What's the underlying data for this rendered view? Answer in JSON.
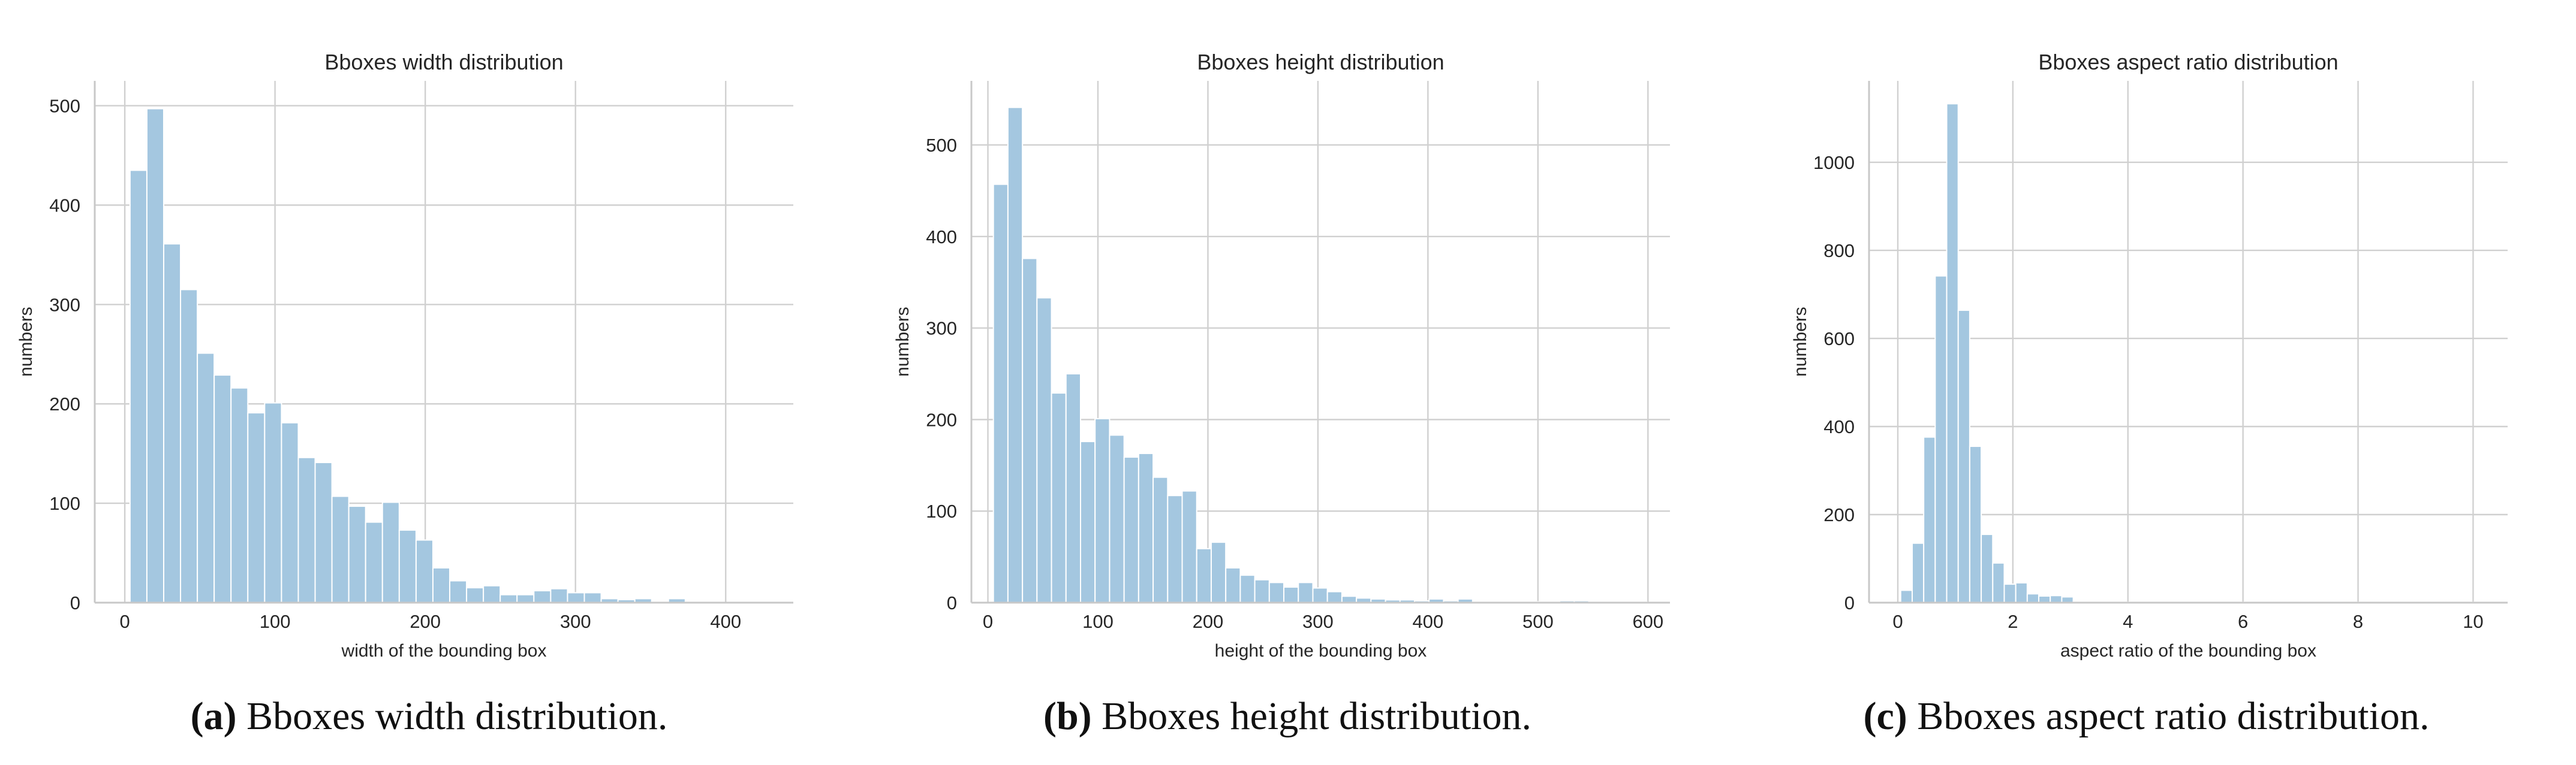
{
  "colors": {
    "bar": "#a4c7e0",
    "bar_edge": "#ffffff",
    "grid": "#d0d0d0",
    "axis": "#c8c8c8",
    "text": "#262626"
  },
  "chart_data": [
    {
      "type": "bar",
      "id": "a",
      "title": "Bboxes width distribution",
      "xlabel": "width of the bounding box",
      "ylabel": "numbers",
      "xlim": [
        -20,
        445
      ],
      "ylim": [
        0,
        525
      ],
      "xticks": [
        0,
        100,
        200,
        300,
        400
      ],
      "yticks": [
        0,
        100,
        200,
        300,
        400,
        500
      ],
      "bin_start": 3.5,
      "bin_width": 11.2,
      "values": [
        435,
        497,
        361,
        315,
        251,
        229,
        216,
        191,
        201,
        181,
        146,
        141,
        107,
        97,
        81,
        101,
        73,
        63,
        35,
        22,
        15,
        17,
        8,
        8,
        12,
        14,
        10,
        10,
        4,
        3,
        4,
        1,
        4,
        1
      ],
      "caption_letter": "(a)",
      "caption_text": " Bboxes width distribution."
    },
    {
      "type": "bar",
      "id": "b",
      "title": "Bboxes height distribution",
      "xlabel": "height of the bounding box",
      "ylabel": "numbers",
      "xlim": [
        -15,
        620
      ],
      "ylim": [
        0,
        570
      ],
      "xticks": [
        0,
        100,
        200,
        300,
        400,
        500,
        600
      ],
      "yticks": [
        0,
        100,
        200,
        300,
        400,
        500
      ],
      "bin_start": 5,
      "bin_width": 13.2,
      "values": [
        457,
        541,
        376,
        333,
        229,
        250,
        176,
        201,
        183,
        159,
        163,
        137,
        117,
        122,
        59,
        66,
        38,
        30,
        25,
        22,
        17,
        22,
        16,
        12,
        7,
        5,
        4,
        3,
        3,
        2,
        4,
        2,
        4,
        1,
        1,
        1,
        1,
        1,
        1,
        2,
        2,
        1,
        1,
        1,
        1
      ],
      "caption_letter": "(b)",
      "caption_text": " Bboxes height distribution."
    },
    {
      "type": "bar",
      "id": "c",
      "title": "Bboxes aspect ratio distribution",
      "xlabel": "aspect ratio of the bounding box",
      "ylabel": "numbers",
      "xlim": [
        -0.5,
        10.6
      ],
      "ylim": [
        0,
        1185
      ],
      "xticks": [
        0,
        2,
        4,
        6,
        8,
        10
      ],
      "yticks": [
        0,
        200,
        400,
        600,
        800,
        1000
      ],
      "bin_start": 0.05,
      "bin_width": 0.2,
      "values": [
        28,
        135,
        376,
        742,
        1133,
        664,
        355,
        155,
        90,
        42,
        45,
        20,
        15,
        16,
        13,
        3,
        2,
        2,
        1,
        1,
        1,
        1,
        1,
        1,
        1,
        1,
        1,
        1,
        1,
        1,
        1,
        1,
        1,
        1,
        1,
        1,
        1,
        1,
        1,
        1,
        1,
        1,
        1,
        1,
        1,
        1,
        1,
        1,
        1,
        1
      ],
      "caption_letter": "(c)",
      "caption_text": " Bboxes aspect ratio distribution."
    }
  ]
}
